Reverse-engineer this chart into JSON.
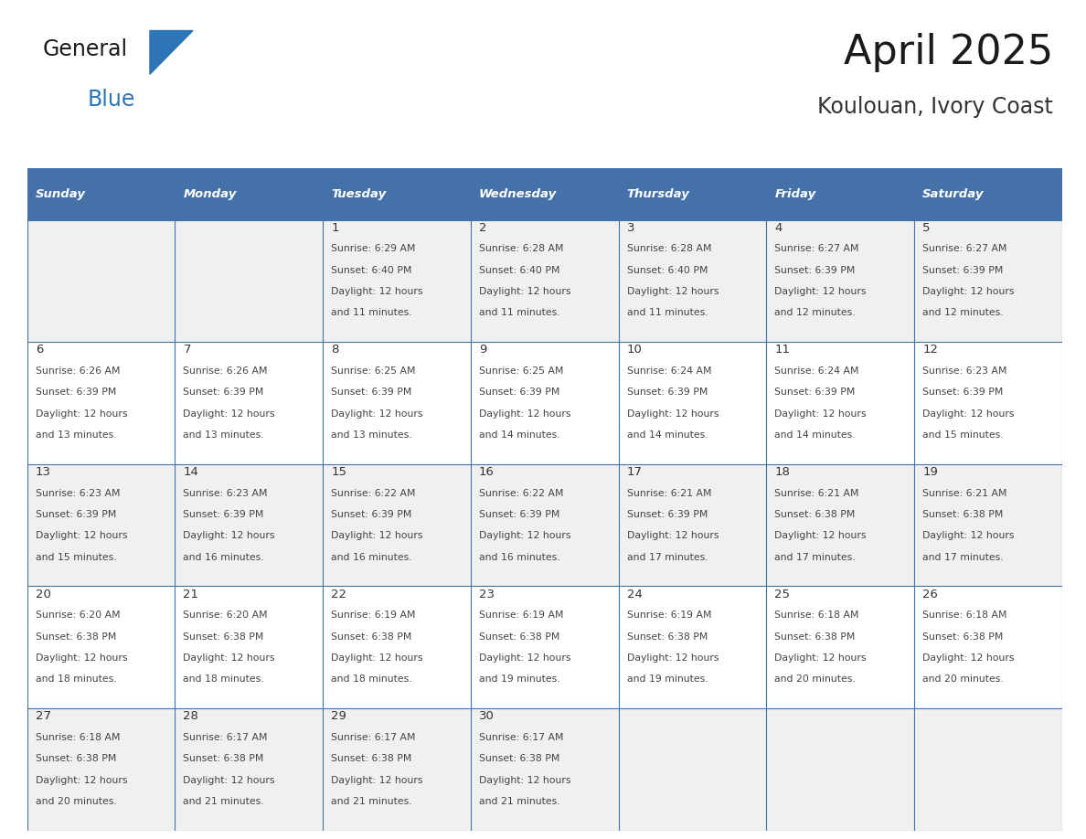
{
  "title": "April 2025",
  "subtitle": "Koulouan, Ivory Coast",
  "days_of_week": [
    "Sunday",
    "Monday",
    "Tuesday",
    "Wednesday",
    "Thursday",
    "Friday",
    "Saturday"
  ],
  "header_bg": "#4472A8",
  "header_text": "#FFFFFF",
  "row_bg_odd": "#F0F0F0",
  "row_bg_even": "#FFFFFF",
  "border_color": "#4472A8",
  "day_number_color": "#333333",
  "text_color": "#444444",
  "calendar_data": [
    [
      {
        "day": null,
        "sunrise": null,
        "sunset": null,
        "daylight_line1": null,
        "daylight_line2": null
      },
      {
        "day": null,
        "sunrise": null,
        "sunset": null,
        "daylight_line1": null,
        "daylight_line2": null
      },
      {
        "day": "1",
        "sunrise": "Sunrise: 6:29 AM",
        "sunset": "Sunset: 6:40 PM",
        "daylight_line1": "Daylight: 12 hours",
        "daylight_line2": "and 11 minutes."
      },
      {
        "day": "2",
        "sunrise": "Sunrise: 6:28 AM",
        "sunset": "Sunset: 6:40 PM",
        "daylight_line1": "Daylight: 12 hours",
        "daylight_line2": "and 11 minutes."
      },
      {
        "day": "3",
        "sunrise": "Sunrise: 6:28 AM",
        "sunset": "Sunset: 6:40 PM",
        "daylight_line1": "Daylight: 12 hours",
        "daylight_line2": "and 11 minutes."
      },
      {
        "day": "4",
        "sunrise": "Sunrise: 6:27 AM",
        "sunset": "Sunset: 6:39 PM",
        "daylight_line1": "Daylight: 12 hours",
        "daylight_line2": "and 12 minutes."
      },
      {
        "day": "5",
        "sunrise": "Sunrise: 6:27 AM",
        "sunset": "Sunset: 6:39 PM",
        "daylight_line1": "Daylight: 12 hours",
        "daylight_line2": "and 12 minutes."
      }
    ],
    [
      {
        "day": "6",
        "sunrise": "Sunrise: 6:26 AM",
        "sunset": "Sunset: 6:39 PM",
        "daylight_line1": "Daylight: 12 hours",
        "daylight_line2": "and 13 minutes."
      },
      {
        "day": "7",
        "sunrise": "Sunrise: 6:26 AM",
        "sunset": "Sunset: 6:39 PM",
        "daylight_line1": "Daylight: 12 hours",
        "daylight_line2": "and 13 minutes."
      },
      {
        "day": "8",
        "sunrise": "Sunrise: 6:25 AM",
        "sunset": "Sunset: 6:39 PM",
        "daylight_line1": "Daylight: 12 hours",
        "daylight_line2": "and 13 minutes."
      },
      {
        "day": "9",
        "sunrise": "Sunrise: 6:25 AM",
        "sunset": "Sunset: 6:39 PM",
        "daylight_line1": "Daylight: 12 hours",
        "daylight_line2": "and 14 minutes."
      },
      {
        "day": "10",
        "sunrise": "Sunrise: 6:24 AM",
        "sunset": "Sunset: 6:39 PM",
        "daylight_line1": "Daylight: 12 hours",
        "daylight_line2": "and 14 minutes."
      },
      {
        "day": "11",
        "sunrise": "Sunrise: 6:24 AM",
        "sunset": "Sunset: 6:39 PM",
        "daylight_line1": "Daylight: 12 hours",
        "daylight_line2": "and 14 minutes."
      },
      {
        "day": "12",
        "sunrise": "Sunrise: 6:23 AM",
        "sunset": "Sunset: 6:39 PM",
        "daylight_line1": "Daylight: 12 hours",
        "daylight_line2": "and 15 minutes."
      }
    ],
    [
      {
        "day": "13",
        "sunrise": "Sunrise: 6:23 AM",
        "sunset": "Sunset: 6:39 PM",
        "daylight_line1": "Daylight: 12 hours",
        "daylight_line2": "and 15 minutes."
      },
      {
        "day": "14",
        "sunrise": "Sunrise: 6:23 AM",
        "sunset": "Sunset: 6:39 PM",
        "daylight_line1": "Daylight: 12 hours",
        "daylight_line2": "and 16 minutes."
      },
      {
        "day": "15",
        "sunrise": "Sunrise: 6:22 AM",
        "sunset": "Sunset: 6:39 PM",
        "daylight_line1": "Daylight: 12 hours",
        "daylight_line2": "and 16 minutes."
      },
      {
        "day": "16",
        "sunrise": "Sunrise: 6:22 AM",
        "sunset": "Sunset: 6:39 PM",
        "daylight_line1": "Daylight: 12 hours",
        "daylight_line2": "and 16 minutes."
      },
      {
        "day": "17",
        "sunrise": "Sunrise: 6:21 AM",
        "sunset": "Sunset: 6:39 PM",
        "daylight_line1": "Daylight: 12 hours",
        "daylight_line2": "and 17 minutes."
      },
      {
        "day": "18",
        "sunrise": "Sunrise: 6:21 AM",
        "sunset": "Sunset: 6:38 PM",
        "daylight_line1": "Daylight: 12 hours",
        "daylight_line2": "and 17 minutes."
      },
      {
        "day": "19",
        "sunrise": "Sunrise: 6:21 AM",
        "sunset": "Sunset: 6:38 PM",
        "daylight_line1": "Daylight: 12 hours",
        "daylight_line2": "and 17 minutes."
      }
    ],
    [
      {
        "day": "20",
        "sunrise": "Sunrise: 6:20 AM",
        "sunset": "Sunset: 6:38 PM",
        "daylight_line1": "Daylight: 12 hours",
        "daylight_line2": "and 18 minutes."
      },
      {
        "day": "21",
        "sunrise": "Sunrise: 6:20 AM",
        "sunset": "Sunset: 6:38 PM",
        "daylight_line1": "Daylight: 12 hours",
        "daylight_line2": "and 18 minutes."
      },
      {
        "day": "22",
        "sunrise": "Sunrise: 6:19 AM",
        "sunset": "Sunset: 6:38 PM",
        "daylight_line1": "Daylight: 12 hours",
        "daylight_line2": "and 18 minutes."
      },
      {
        "day": "23",
        "sunrise": "Sunrise: 6:19 AM",
        "sunset": "Sunset: 6:38 PM",
        "daylight_line1": "Daylight: 12 hours",
        "daylight_line2": "and 19 minutes."
      },
      {
        "day": "24",
        "sunrise": "Sunrise: 6:19 AM",
        "sunset": "Sunset: 6:38 PM",
        "daylight_line1": "Daylight: 12 hours",
        "daylight_line2": "and 19 minutes."
      },
      {
        "day": "25",
        "sunrise": "Sunrise: 6:18 AM",
        "sunset": "Sunset: 6:38 PM",
        "daylight_line1": "Daylight: 12 hours",
        "daylight_line2": "and 20 minutes."
      },
      {
        "day": "26",
        "sunrise": "Sunrise: 6:18 AM",
        "sunset": "Sunset: 6:38 PM",
        "daylight_line1": "Daylight: 12 hours",
        "daylight_line2": "and 20 minutes."
      }
    ],
    [
      {
        "day": "27",
        "sunrise": "Sunrise: 6:18 AM",
        "sunset": "Sunset: 6:38 PM",
        "daylight_line1": "Daylight: 12 hours",
        "daylight_line2": "and 20 minutes."
      },
      {
        "day": "28",
        "sunrise": "Sunrise: 6:17 AM",
        "sunset": "Sunset: 6:38 PM",
        "daylight_line1": "Daylight: 12 hours",
        "daylight_line2": "and 21 minutes."
      },
      {
        "day": "29",
        "sunrise": "Sunrise: 6:17 AM",
        "sunset": "Sunset: 6:38 PM",
        "daylight_line1": "Daylight: 12 hours",
        "daylight_line2": "and 21 minutes."
      },
      {
        "day": "30",
        "sunrise": "Sunrise: 6:17 AM",
        "sunset": "Sunset: 6:38 PM",
        "daylight_line1": "Daylight: 12 hours",
        "daylight_line2": "and 21 minutes."
      },
      {
        "day": null,
        "sunrise": null,
        "sunset": null,
        "daylight_line1": null,
        "daylight_line2": null
      },
      {
        "day": null,
        "sunrise": null,
        "sunset": null,
        "daylight_line1": null,
        "daylight_line2": null
      },
      {
        "day": null,
        "sunrise": null,
        "sunset": null,
        "daylight_line1": null,
        "daylight_line2": null
      }
    ]
  ],
  "logo_text_general": "General",
  "logo_text_blue": "Blue",
  "logo_color_general": "#1a1a1a",
  "logo_color_blue": "#2E75B6",
  "logo_triangle_color": "#2E75B6",
  "figsize": [
    11.88,
    9.18
  ],
  "dpi": 100
}
